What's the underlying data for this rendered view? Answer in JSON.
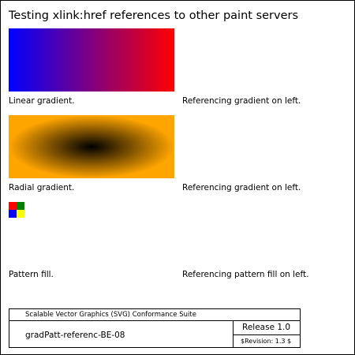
{
  "title": "Testing xlink:href references to other paint servers",
  "rows": [
    {
      "left_caption": "Linear gradient.",
      "right_caption": "Referencing gradient on left."
    },
    {
      "left_caption": "Radial gradient.",
      "right_caption": "Referencing gradient on left."
    },
    {
      "left_caption": "Pattern fill.",
      "right_caption": "Referencing pattern fill on left."
    }
  ],
  "colors": {
    "linear_start": "#0000ff",
    "linear_end": "#ff0000",
    "radial_center": "#000000",
    "radial_edge": "#ffa500",
    "pattern_top_left": "#ff0000",
    "pattern_top_right": "#008000",
    "pattern_bottom_left": "#0000ff",
    "pattern_bottom_right": "#ffff00"
  },
  "footer": {
    "suite": "Scalable Vector Graphics (SVG) Conformance Suite",
    "test_name": "gradPatt-referenc-BE-08",
    "release": "Release 1.0",
    "revision": "$Revision: 1.3 $"
  }
}
